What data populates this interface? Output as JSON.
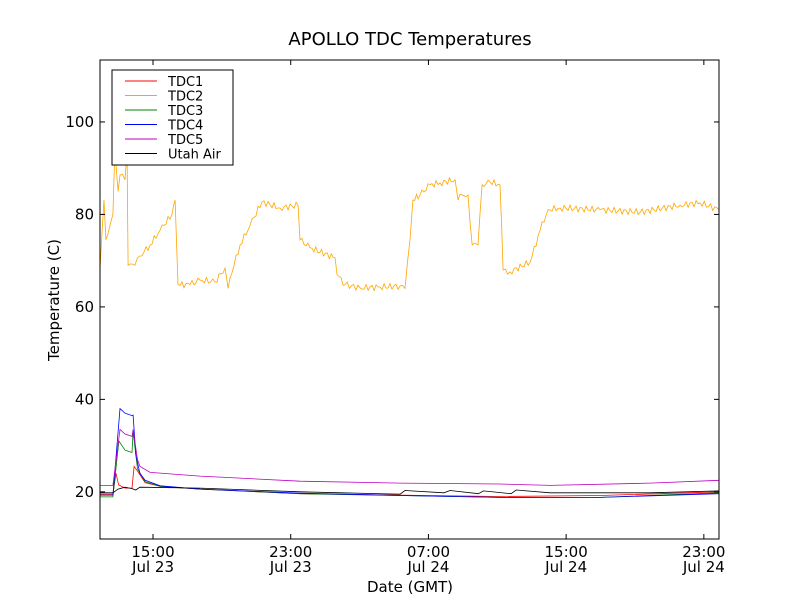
{
  "chart_data": {
    "type": "line",
    "title": "APOLLO TDC Temperatures",
    "xlabel": "Date (GMT)",
    "ylabel": "Temperature (C)",
    "x_units": "hours since Jul 23 00:00 GMT",
    "xlim": [
      11.92,
      47.88
    ],
    "ylim": [
      9.8,
      113.4
    ],
    "yticks": [
      20,
      40,
      60,
      80,
      100
    ],
    "xticks": [
      {
        "x": 15,
        "label1": "15:00",
        "label2": "Jul 23"
      },
      {
        "x": 23,
        "label1": "23:00",
        "label2": "Jul 23"
      },
      {
        "x": 31,
        "label1": "07:00",
        "label2": "Jul 24"
      },
      {
        "x": 39,
        "label1": "15:00",
        "label2": "Jul 24"
      },
      {
        "x": 47,
        "label1": "23:00",
        "label2": "Jul 24"
      }
    ],
    "grid": false,
    "legend_placement": "top-left",
    "series": [
      {
        "name": "TDC1",
        "color": "#ff0000",
        "points": [
          [
            11.92,
            19.5
          ],
          [
            12.67,
            19.5
          ],
          [
            12.85,
            24
          ],
          [
            13.0,
            21.5
          ],
          [
            13.37,
            20.8
          ],
          [
            13.78,
            20.8
          ],
          [
            13.9,
            25.5
          ],
          [
            14.1,
            24.5
          ],
          [
            14.54,
            22
          ],
          [
            15.41,
            21.2
          ],
          [
            17.73,
            20.6
          ],
          [
            23.54,
            19.6
          ],
          [
            29.35,
            19.3
          ],
          [
            35.16,
            19
          ],
          [
            40.97,
            19.2
          ],
          [
            47.88,
            20
          ]
        ]
      },
      {
        "name": "TDC2",
        "color": "#ffa500",
        "points": [
          [
            11.92,
            68
          ],
          [
            12.15,
            83.1
          ],
          [
            12.26,
            74.5
          ],
          [
            12.5,
            77.7
          ],
          [
            12.67,
            80
          ],
          [
            12.79,
            95
          ],
          [
            12.97,
            85
          ],
          [
            13.08,
            88.5
          ],
          [
            13.37,
            87.5
          ],
          [
            13.49,
            94
          ],
          [
            13.55,
            69
          ],
          [
            13.95,
            69
          ],
          [
            14.24,
            71
          ],
          [
            14.83,
            73.4
          ],
          [
            15.41,
            76.6
          ],
          [
            16.1,
            80
          ],
          [
            16.28,
            83.1
          ],
          [
            16.45,
            64.8
          ],
          [
            17.15,
            64.8
          ],
          [
            17.73,
            65.8
          ],
          [
            18.6,
            65.4
          ],
          [
            19.18,
            68.4
          ],
          [
            19.36,
            64
          ],
          [
            19.47,
            66.3
          ],
          [
            20.06,
            73.4
          ],
          [
            20.64,
            77.7
          ],
          [
            21.33,
            82.7
          ],
          [
            22.38,
            81.4
          ],
          [
            23.43,
            82
          ],
          [
            23.54,
            74.5
          ],
          [
            24.12,
            72.8
          ],
          [
            25.58,
            70.6
          ],
          [
            25.69,
            67
          ],
          [
            26.16,
            64.8
          ],
          [
            27.03,
            64.1
          ],
          [
            28.19,
            64.3
          ],
          [
            29.35,
            64.5
          ],
          [
            29.64,
            64
          ],
          [
            29.93,
            74.5
          ],
          [
            30.1,
            83.1
          ],
          [
            30.51,
            84.2
          ],
          [
            31.09,
            86.4
          ],
          [
            31.67,
            86.8
          ],
          [
            32.55,
            87.5
          ],
          [
            32.72,
            83.1
          ],
          [
            32.95,
            84.2
          ],
          [
            33.3,
            84.2
          ],
          [
            33.54,
            73.4
          ],
          [
            33.88,
            73.4
          ],
          [
            34.12,
            86.4
          ],
          [
            34.58,
            87
          ],
          [
            35.16,
            86.4
          ],
          [
            35.34,
            68
          ],
          [
            35.74,
            67.6
          ],
          [
            36.91,
            69.7
          ],
          [
            37.49,
            76.6
          ],
          [
            37.95,
            81
          ],
          [
            38.65,
            81.4
          ],
          [
            40.97,
            81
          ],
          [
            43.3,
            80.5
          ],
          [
            45.62,
            82
          ],
          [
            46.78,
            82.5
          ],
          [
            47.88,
            81
          ]
        ]
      },
      {
        "name": "TDC3",
        "color": "#008000",
        "points": [
          [
            11.92,
            18.9
          ],
          [
            12.67,
            18.9
          ],
          [
            13.02,
            31
          ],
          [
            13.37,
            29
          ],
          [
            13.78,
            28.5
          ],
          [
            13.84,
            33
          ],
          [
            14.1,
            25
          ],
          [
            14.54,
            22.2
          ],
          [
            15.41,
            21.2
          ],
          [
            17.73,
            20.6
          ],
          [
            23.54,
            19.6
          ],
          [
            29.35,
            19.2
          ],
          [
            35.16,
            18.8
          ],
          [
            40.97,
            18.8
          ],
          [
            47.88,
            19.8
          ]
        ]
      },
      {
        "name": "TDC4",
        "color": "#0000ff",
        "points": [
          [
            11.92,
            19.3
          ],
          [
            12.67,
            19.3
          ],
          [
            13.08,
            38
          ],
          [
            13.37,
            37
          ],
          [
            13.78,
            36.5
          ],
          [
            13.84,
            36.6
          ],
          [
            14.0,
            28
          ],
          [
            14.24,
            24
          ],
          [
            14.54,
            22.5
          ],
          [
            15.41,
            21.3
          ],
          [
            17.73,
            20.6
          ],
          [
            23.54,
            19.7
          ],
          [
            29.35,
            19.2
          ],
          [
            35.16,
            18.8
          ],
          [
            40.97,
            18.8
          ],
          [
            47.88,
            19.6
          ]
        ]
      },
      {
        "name": "TDC5",
        "color": "#bf00bf",
        "points": [
          [
            11.92,
            21.4
          ],
          [
            12.67,
            21.4
          ],
          [
            13.08,
            33.5
          ],
          [
            13.37,
            32.5
          ],
          [
            13.78,
            32
          ],
          [
            13.84,
            33.5
          ],
          [
            14.1,
            27
          ],
          [
            14.24,
            25.5
          ],
          [
            14.83,
            24.2
          ],
          [
            17.73,
            23.4
          ],
          [
            23.54,
            22.3
          ],
          [
            29.35,
            21.9
          ],
          [
            35.16,
            21.7
          ],
          [
            38.07,
            21.4
          ],
          [
            43.88,
            21.9
          ],
          [
            47.88,
            22.5
          ]
        ]
      },
      {
        "name": "Utah Air",
        "color": "#000000",
        "points": [
          [
            11.92,
            19.8
          ],
          [
            12.67,
            19.8
          ],
          [
            12.97,
            20.6
          ],
          [
            13.37,
            21
          ],
          [
            13.78,
            20.7
          ],
          [
            14.0,
            20.4
          ],
          [
            14.24,
            21
          ],
          [
            17.73,
            20.8
          ],
          [
            23.54,
            20
          ],
          [
            29.35,
            19.5
          ],
          [
            29.64,
            20.3
          ],
          [
            31.9,
            19.8
          ],
          [
            32.26,
            20.3
          ],
          [
            33.9,
            19.6
          ],
          [
            34.2,
            20.2
          ],
          [
            35.8,
            19.6
          ],
          [
            36.1,
            20.4
          ],
          [
            38.07,
            19.8
          ],
          [
            43.88,
            19.8
          ],
          [
            47.88,
            20.2
          ]
        ]
      }
    ]
  }
}
